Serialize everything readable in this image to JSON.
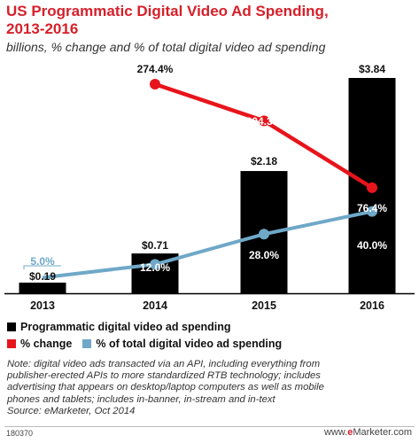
{
  "title_lines": [
    "US Programmatic Digital Video Ad Spending,",
    "2013-2016"
  ],
  "subtitle": "billions, % change and % of total digital video ad spending",
  "chart_data": {
    "type": "bar",
    "categories": [
      "2013",
      "2014",
      "2015",
      "2016"
    ],
    "series": [
      {
        "name": "Programmatic digital video ad spending",
        "type": "bar",
        "color": "#000000",
        "values": [
          0.19,
          0.71,
          2.18,
          3.84
        ],
        "labels": [
          "$0.19",
          "$0.71",
          "$2.18",
          "$3.84"
        ]
      },
      {
        "name": "% change",
        "type": "line",
        "color": "#e8141b",
        "values": [
          null,
          274.4,
          204.3,
          76.4
        ],
        "labels": [
          "",
          "274.4%",
          "204.3%",
          "76.4%"
        ]
      },
      {
        "name": "% of total digital video ad spending",
        "type": "line",
        "color": "#6fa8c8",
        "values": [
          5.0,
          12.0,
          28.0,
          40.0
        ],
        "labels": [
          "5.0%",
          "12.0%",
          "28.0%",
          "40.0%"
        ]
      }
    ],
    "bar_ylim": [
      0,
      3.84
    ],
    "change_ylim": [
      0,
      274.4
    ],
    "share_ylim": [
      0,
      75
    ],
    "grid": false,
    "legend_position": "bottom"
  },
  "legend": [
    {
      "label": "Programmatic digital video ad spending",
      "color": "#000000"
    },
    {
      "label": "% change",
      "color": "#e8141b"
    },
    {
      "label": "% of total digital video ad spending",
      "color": "#6fa8c8"
    }
  ],
  "notes": [
    "Note: digital video ads transacted via an API, including everything from",
    "publisher-erected APIs to more standardized RTB technology; includes",
    "advertising that appears on desktop/laptop computers as well as mobile",
    "phones and tablets; includes in-banner, in-stream and in-text",
    "Source: eMarketer, Oct 2014"
  ],
  "footer": {
    "chart_id": "180370",
    "brand_prefix": "www.",
    "brand_e": "e",
    "brand_suffix": "Marketer.com"
  },
  "colors": {
    "accent": "#d6202a",
    "bar": "#000000",
    "change": "#e8141b",
    "share": "#6fa8c8"
  }
}
